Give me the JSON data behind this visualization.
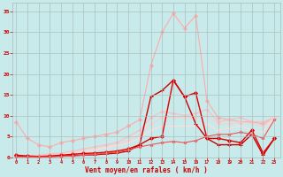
{
  "x": [
    0,
    1,
    2,
    3,
    4,
    5,
    6,
    7,
    8,
    9,
    10,
    11,
    12,
    13,
    14,
    15,
    16,
    17,
    18,
    19,
    20,
    21,
    22,
    23
  ],
  "lines": [
    {
      "y": [
        8.5,
        4.5,
        3.0,
        2.5,
        3.5,
        4.0,
        4.5,
        5.0,
        5.5,
        6.0,
        7.5,
        9.0,
        22.0,
        30.0,
        34.5,
        31.0,
        34.0,
        13.5,
        9.5,
        9.0,
        8.5,
        8.5,
        8.0,
        9.5
      ],
      "color": "#ffaaaa",
      "lw": 0.8,
      "marker": "D",
      "ms": 2.0
    },
    {
      "y": [
        0.5,
        0.4,
        0.5,
        0.8,
        1.0,
        1.5,
        2.0,
        2.5,
        3.0,
        3.5,
        5.0,
        6.5,
        9.5,
        11.0,
        10.5,
        10.0,
        10.5,
        11.5,
        8.5,
        9.0,
        9.5,
        8.5,
        8.5,
        9.5
      ],
      "color": "#ffbbbb",
      "lw": 0.8,
      "marker": "D",
      "ms": 1.5
    },
    {
      "y": [
        0.3,
        0.3,
        0.4,
        0.5,
        0.8,
        1.0,
        1.5,
        2.0,
        2.5,
        3.0,
        4.0,
        5.5,
        8.0,
        9.5,
        9.5,
        9.5,
        9.5,
        10.0,
        8.0,
        8.0,
        8.5,
        8.0,
        7.5,
        9.5
      ],
      "color": "#ffcccc",
      "lw": 0.8,
      "marker": "D",
      "ms": 1.5
    },
    {
      "y": [
        0.2,
        0.2,
        0.3,
        0.4,
        0.6,
        0.9,
        1.3,
        1.8,
        2.3,
        2.8,
        3.5,
        4.5,
        6.5,
        7.5,
        7.5,
        7.5,
        7.5,
        8.0,
        6.5,
        7.0,
        7.5,
        6.5,
        6.0,
        9.5
      ],
      "color": "#ffdddd",
      "lw": 0.8,
      "marker": "D",
      "ms": 1.5
    },
    {
      "y": [
        0.3,
        0.2,
        0.2,
        0.2,
        0.3,
        0.4,
        0.5,
        0.6,
        0.8,
        1.0,
        1.5,
        3.0,
        14.5,
        16.0,
        18.5,
        14.5,
        8.0,
        4.5,
        3.0,
        3.0,
        3.0,
        5.5,
        0.5,
        4.5
      ],
      "color": "#cc0000",
      "lw": 1.0,
      "marker": "+",
      "ms": 3.5
    },
    {
      "y": [
        0.5,
        0.3,
        0.2,
        0.3,
        0.5,
        0.7,
        0.9,
        1.0,
        1.2,
        1.5,
        2.0,
        3.0,
        4.5,
        5.0,
        18.5,
        14.5,
        15.5,
        4.5,
        4.5,
        4.0,
        3.5,
        6.5,
        1.0,
        4.5
      ],
      "color": "#dd0000",
      "lw": 1.0,
      "marker": "D",
      "ms": 2.0
    },
    {
      "y": [
        0.1,
        0.1,
        0.1,
        0.1,
        0.2,
        0.3,
        0.5,
        0.7,
        1.0,
        1.2,
        1.8,
        2.5,
        3.0,
        3.5,
        3.8,
        3.5,
        4.0,
        5.0,
        5.5,
        5.5,
        6.0,
        5.5,
        4.5,
        9.0
      ],
      "color": "#ee5555",
      "lw": 0.8,
      "marker": "D",
      "ms": 1.5
    }
  ],
  "xlim": [
    -0.3,
    23.5
  ],
  "ylim": [
    0,
    37
  ],
  "yticks": [
    0,
    5,
    10,
    15,
    20,
    25,
    30,
    35
  ],
  "xticks": [
    0,
    1,
    2,
    3,
    4,
    5,
    6,
    7,
    8,
    9,
    10,
    11,
    12,
    13,
    14,
    15,
    16,
    17,
    18,
    19,
    20,
    21,
    22,
    23
  ],
  "xlabel": "Vent moyen/en rafales ( km/h )",
  "bg_color": "#c8eaea",
  "grid_color": "#aabbbb",
  "tick_color": "#cc0000",
  "label_color": "#cc0000"
}
